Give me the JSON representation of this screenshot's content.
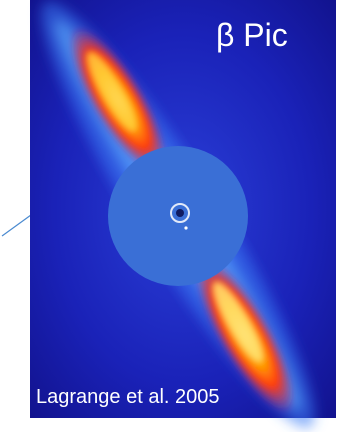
{
  "image": {
    "title": "β Pic",
    "credit": "Lagrange et al. 2005"
  }
}
